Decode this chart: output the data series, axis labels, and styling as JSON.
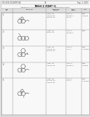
{
  "page_bg": "#e8e8e8",
  "content_bg": "#f5f5f5",
  "header_left": "US 2011/0218097 A1",
  "header_right": "Sep. 1, 2011",
  "header_center": "19",
  "title": "TABLE 8 (PART 1)",
  "subtitle": "HERBICIDAL ACTIVITY OF COMPOUNDS IN A GREENHOUSE STUDY",
  "text_color": "#444444",
  "line_color": "#999999",
  "struct_color": "#555555",
  "thin_line": 0.25,
  "struct_lw": 0.4
}
